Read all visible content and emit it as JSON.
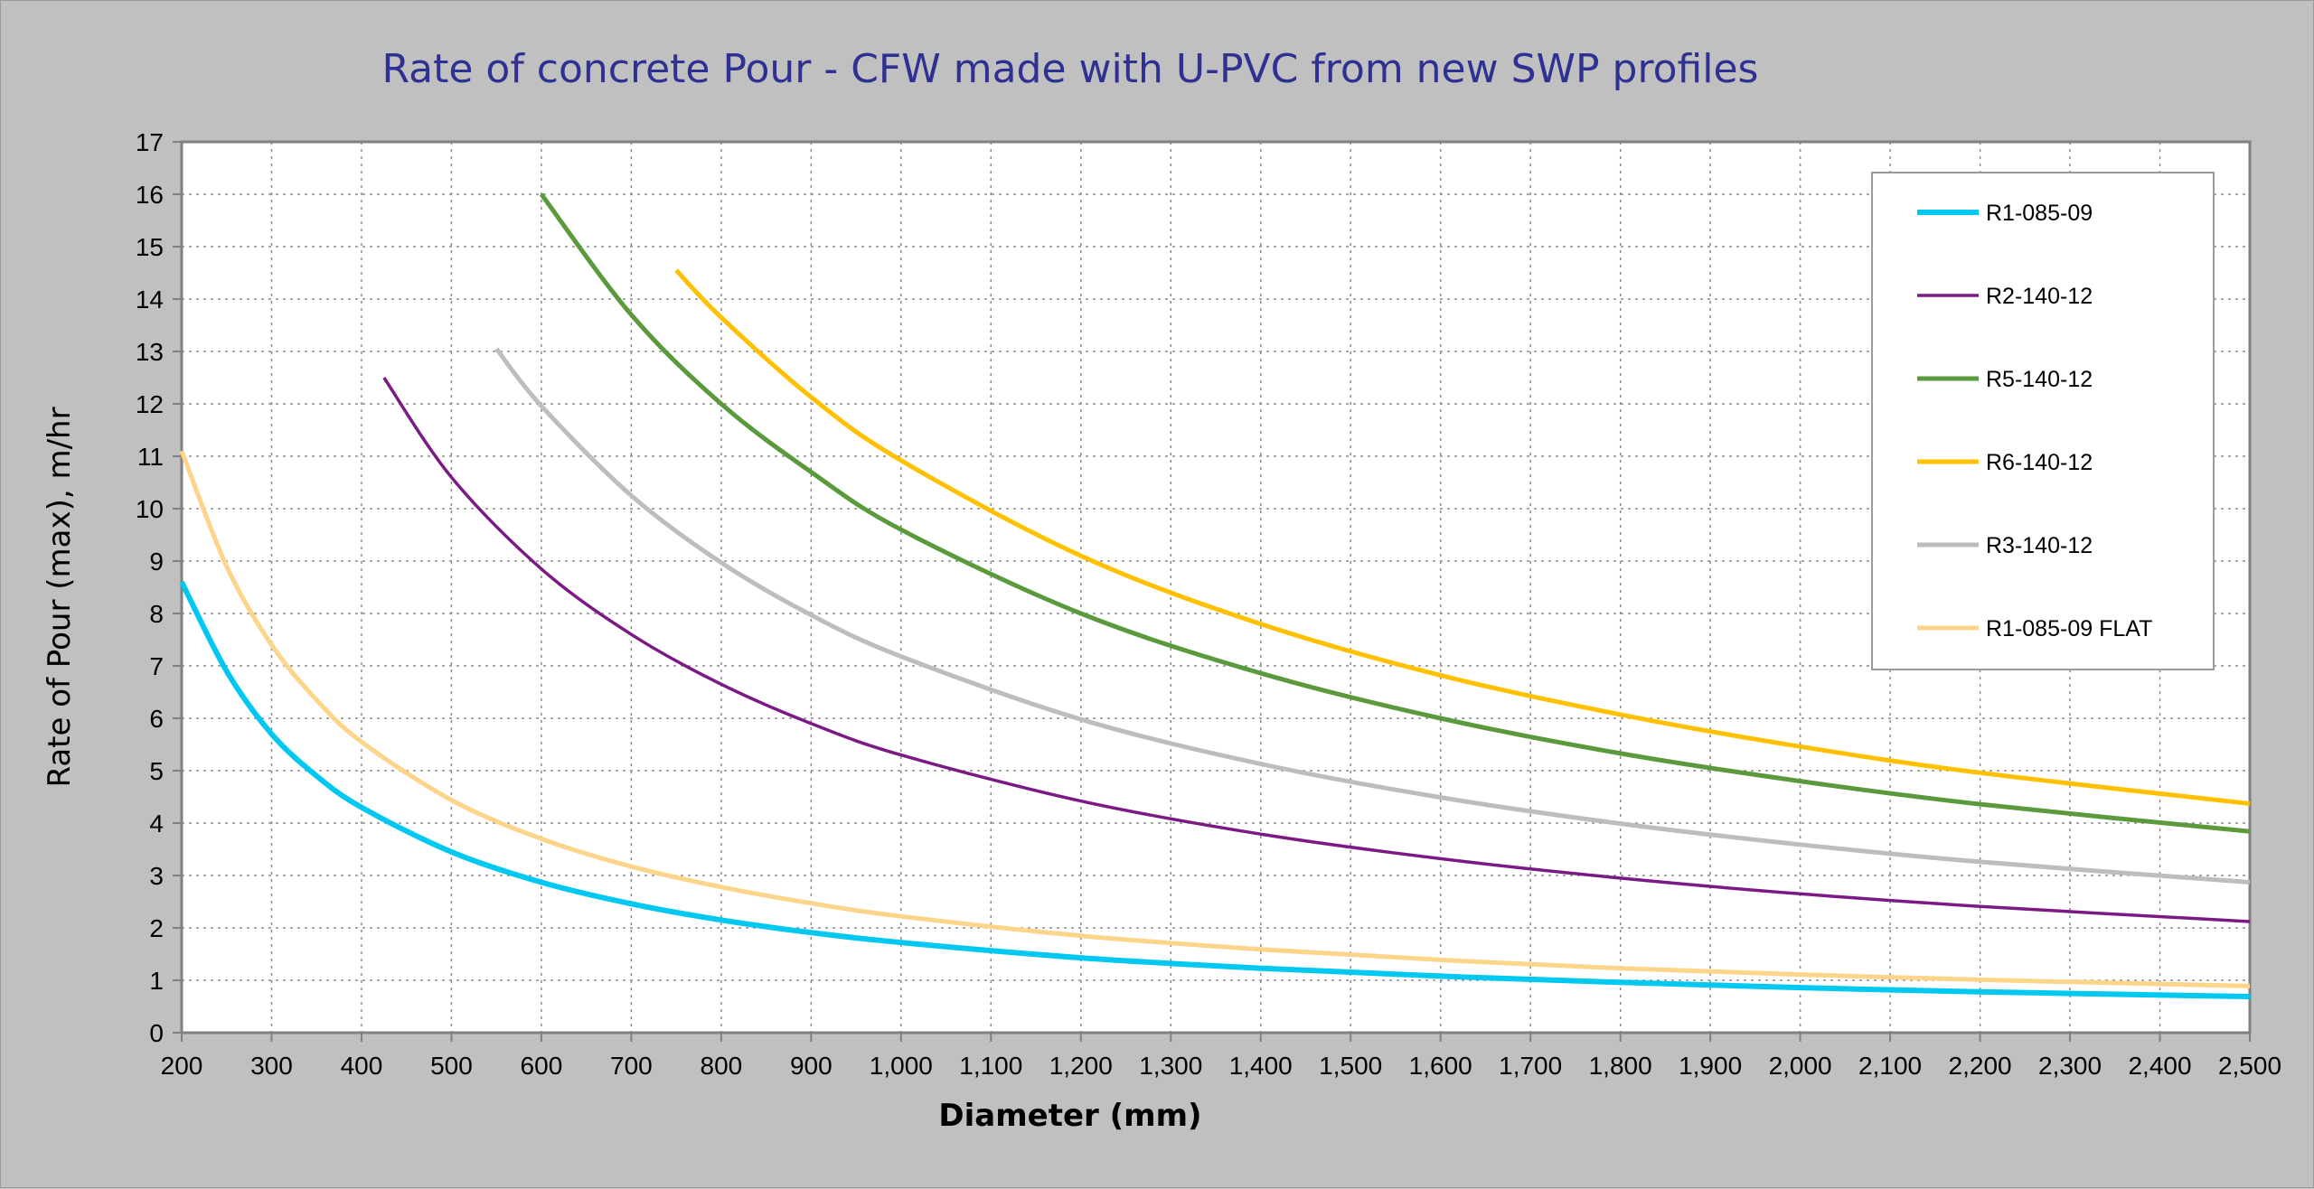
{
  "chart_data": {
    "type": "line",
    "title": "Rate of concrete Pour - CFW made with U-PVC from new SWP profiles",
    "xlabel": "Diameter (mm)",
    "ylabel": "Rate of Pour (max), m/hr",
    "xlim": [
      200,
      2500
    ],
    "ylim": [
      0,
      17
    ],
    "x_ticks": [
      "200",
      "300",
      "400",
      "500",
      "600",
      "700",
      "800",
      "900",
      "1,000",
      "1,100",
      "1,200",
      "1,300",
      "1,400",
      "1,500",
      "1,600",
      "1,700",
      "1,800",
      "1,900",
      "2,000",
      "2,100",
      "2,200",
      "2,300",
      "2,400",
      "2,500"
    ],
    "y_ticks": [
      "0",
      "1",
      "2",
      "3",
      "4",
      "5",
      "6",
      "7",
      "8",
      "9",
      "10",
      "11",
      "12",
      "13",
      "14",
      "15",
      "16",
      "17"
    ],
    "grid": true,
    "legend_position": "top-right",
    "series": [
      {
        "name": "R1-085-09",
        "color": "#00c8f0",
        "x": [
          200,
          250,
          300,
          350,
          400,
          500,
          600,
          700,
          800,
          900,
          1000,
          1200,
          1400,
          1600,
          1800,
          2000,
          2200,
          2500
        ],
        "y": [
          8.6,
          6.9,
          5.7,
          4.9,
          4.3,
          3.45,
          2.87,
          2.46,
          2.15,
          1.91,
          1.72,
          1.43,
          1.23,
          1.08,
          0.96,
          0.86,
          0.78,
          0.69
        ]
      },
      {
        "name": "R2-140-12",
        "color": "#7b1a84",
        "x": [
          425,
          500,
          600,
          700,
          800,
          900,
          1000,
          1200,
          1400,
          1600,
          1800,
          2000,
          2200,
          2500
        ],
        "y": [
          12.5,
          10.6,
          8.85,
          7.6,
          6.65,
          5.9,
          5.3,
          4.42,
          3.79,
          3.32,
          2.95,
          2.65,
          2.41,
          2.12
        ]
      },
      {
        "name": "R5-140-12",
        "color": "#5a9a3c",
        "x": [
          600,
          700,
          800,
          900,
          1000,
          1200,
          1400,
          1600,
          1800,
          2000,
          2200,
          2500
        ],
        "y": [
          16.0,
          13.7,
          12.0,
          10.7,
          9.6,
          8.0,
          6.86,
          6.0,
          5.33,
          4.8,
          4.36,
          3.84
        ]
      },
      {
        "name": "R6-140-12",
        "color": "#ffc000",
        "x": [
          750,
          800,
          900,
          1000,
          1200,
          1400,
          1600,
          1800,
          2000,
          2200,
          2500
        ],
        "y": [
          14.55,
          13.65,
          12.13,
          10.92,
          9.1,
          7.8,
          6.82,
          6.07,
          5.46,
          4.96,
          4.37
        ]
      },
      {
        "name": "R3-140-12",
        "color": "#bdbdbd",
        "x": [
          550,
          600,
          700,
          800,
          900,
          1000,
          1200,
          1400,
          1600,
          1800,
          2000,
          2200,
          2500
        ],
        "y": [
          13.05,
          11.96,
          10.25,
          8.97,
          7.97,
          7.18,
          5.98,
          5.13,
          4.49,
          3.99,
          3.59,
          3.26,
          2.87
        ]
      },
      {
        "name": "R1-085-09 FLAT",
        "color": "#fcd48a",
        "x": [
          200,
          250,
          300,
          350,
          400,
          500,
          600,
          700,
          800,
          900,
          1000,
          1200,
          1400,
          1600,
          1800,
          2000,
          2200,
          2500
        ],
        "y": [
          11.1,
          8.9,
          7.4,
          6.35,
          5.55,
          4.44,
          3.7,
          3.17,
          2.78,
          2.47,
          2.22,
          1.85,
          1.59,
          1.39,
          1.23,
          1.11,
          1.01,
          0.89
        ]
      }
    ]
  }
}
